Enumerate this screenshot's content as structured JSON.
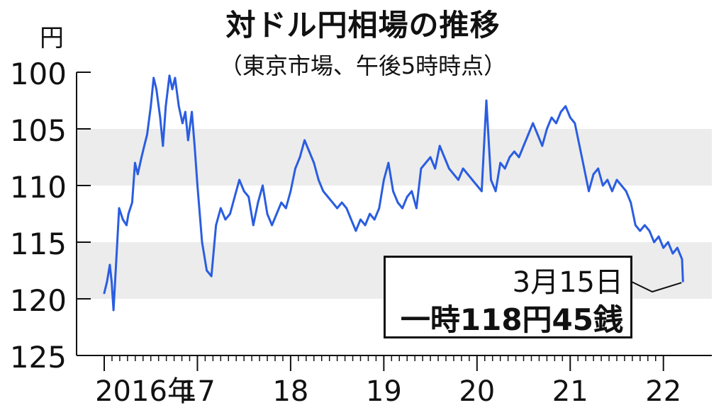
{
  "chart_data": {
    "type": "line",
    "title": "対ドル円相場の推移",
    "subtitle": "（東京市場、午後5時時点）",
    "ylabel": "円",
    "ylim": [
      100,
      125
    ],
    "y_inverted": true,
    "yticks": [
      "100",
      "105",
      "110",
      "115",
      "120",
      "125"
    ],
    "x_tick_labels": [
      "2016年",
      "17",
      "18",
      "19",
      "20",
      "21",
      "22"
    ],
    "xlim": [
      2016.0,
      2022.2
    ],
    "shaded_bands": [
      [
        105,
        110
      ],
      [
        115,
        120
      ]
    ],
    "colors": {
      "line": "#2a5de0",
      "band": "#ececec"
    },
    "series": [
      {
        "x": [
          2016.0,
          2016.03,
          2016.06,
          2016.08,
          2016.1,
          2016.13,
          2016.16,
          2016.2,
          2016.24,
          2016.26,
          2016.3,
          2016.33,
          2016.36,
          2016.4,
          2016.43,
          2016.46,
          2016.5,
          2016.53,
          2016.56,
          2016.6,
          2016.63,
          2016.66,
          2016.7,
          2016.73,
          2016.76,
          2016.8,
          2016.84,
          2016.87,
          2016.9,
          2016.94,
          2016.97,
          2017.0,
          2017.05,
          2017.1,
          2017.15,
          2017.2,
          2017.25,
          2017.3,
          2017.35,
          2017.4,
          2017.45,
          2017.5,
          2017.55,
          2017.6,
          2017.65,
          2017.7,
          2017.75,
          2017.8,
          2017.85,
          2017.9,
          2017.95,
          2018.0,
          2018.05,
          2018.1,
          2018.15,
          2018.2,
          2018.25,
          2018.3,
          2018.35,
          2018.4,
          2018.45,
          2018.5,
          2018.55,
          2018.6,
          2018.65,
          2018.7,
          2018.75,
          2018.8,
          2018.85,
          2018.9,
          2018.95,
          2019.0,
          2019.05,
          2019.1,
          2019.15,
          2019.2,
          2019.25,
          2019.3,
          2019.35,
          2019.4,
          2019.45,
          2019.5,
          2019.55,
          2019.6,
          2019.65,
          2019.7,
          2019.75,
          2019.8,
          2019.85,
          2019.9,
          2019.95,
          2020.0,
          2020.05,
          2020.1,
          2020.15,
          2020.2,
          2020.25,
          2020.3,
          2020.35,
          2020.4,
          2020.45,
          2020.5,
          2020.55,
          2020.6,
          2020.65,
          2020.7,
          2020.75,
          2020.8,
          2020.85,
          2020.9,
          2020.95,
          2021.0,
          2021.05,
          2021.1,
          2021.15,
          2021.2,
          2021.25,
          2021.3,
          2021.35,
          2021.4,
          2021.45,
          2021.5,
          2021.55,
          2021.6,
          2021.65,
          2021.7,
          2021.75,
          2021.8,
          2021.85,
          2021.9,
          2021.95,
          2022.0,
          2022.05,
          2022.1,
          2022.15,
          2022.2,
          2022.21
        ],
        "y": [
          119.5,
          118.5,
          117.0,
          118.5,
          121.0,
          116.5,
          112.0,
          113.0,
          113.5,
          112.5,
          111.5,
          108.0,
          109.0,
          107.5,
          106.5,
          105.5,
          103.0,
          100.5,
          101.5,
          104.0,
          106.5,
          103.0,
          100.3,
          101.5,
          100.5,
          103.0,
          104.5,
          103.5,
          106.0,
          103.5,
          106.5,
          110.0,
          115.0,
          117.5,
          118.0,
          113.5,
          112.0,
          113.0,
          112.5,
          111.0,
          109.5,
          110.5,
          111.0,
          113.5,
          111.5,
          110.0,
          112.5,
          113.5,
          112.5,
          111.5,
          112.0,
          110.5,
          108.5,
          107.5,
          106.0,
          107.0,
          108.0,
          109.5,
          110.5,
          111.0,
          111.5,
          112.0,
          111.5,
          112.0,
          113.0,
          114.0,
          113.0,
          113.5,
          112.5,
          113.0,
          112.0,
          109.5,
          108.0,
          110.5,
          111.5,
          112.0,
          111.0,
          110.5,
          112.0,
          108.5,
          108.0,
          107.5,
          108.5,
          106.5,
          107.5,
          108.5,
          109.0,
          109.5,
          108.5,
          109.0,
          109.5,
          110.0,
          110.5,
          102.5,
          109.5,
          110.5,
          108.0,
          108.5,
          107.5,
          107.0,
          107.5,
          106.5,
          105.5,
          104.5,
          105.5,
          106.5,
          105.0,
          104.0,
          104.5,
          103.5,
          103.0,
          104.0,
          104.5,
          106.5,
          108.5,
          110.5,
          109.0,
          108.5,
          110.0,
          109.5,
          110.5,
          109.5,
          110.0,
          110.5,
          111.5,
          113.5,
          114.0,
          113.5,
          114.0,
          115.0,
          114.5,
          115.5,
          115.0,
          116.0,
          115.5,
          116.5,
          118.45
        ]
      }
    ],
    "annotation": {
      "date": "3月15日",
      "value": "一時118円45銭",
      "x": 2022.21,
      "y": 118.45
    }
  }
}
